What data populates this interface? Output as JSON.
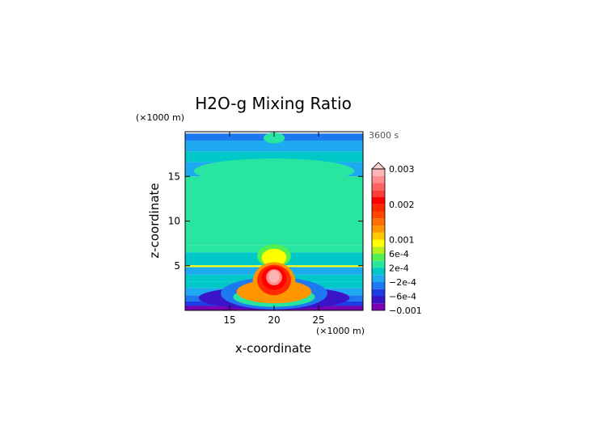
{
  "chart_data": {
    "type": "heatmap",
    "title": "H2O-g Mixing Ratio",
    "xlabel": "x-coordinate",
    "ylabel": "z-coordinate",
    "x_unit": "(×1000 m)",
    "y_unit": "(×1000 m)",
    "time_label": "3600 s",
    "xlim": [
      10,
      30
    ],
    "ylim": [
      0,
      20
    ],
    "x_ticks": [
      {
        "value": 15,
        "label": "15"
      },
      {
        "value": 20,
        "label": "20"
      },
      {
        "value": 25,
        "label": "25"
      }
    ],
    "y_ticks": [
      {
        "value": 5,
        "label": "5"
      },
      {
        "value": 10,
        "label": "10"
      },
      {
        "value": 15,
        "label": "15"
      }
    ],
    "colorbar": {
      "levels": [
        -0.001,
        -0.0008,
        -0.0006,
        -0.0004,
        -0.0002,
        0,
        0.0002,
        0.0004,
        0.0006,
        0.0008,
        0.001,
        0.0012,
        0.0014,
        0.0016,
        0.0018,
        0.002,
        0.0022,
        0.0024,
        0.0026,
        0.0028,
        0.003
      ],
      "colors": [
        "#7a00b4",
        "#3c14c8",
        "#1e3ce6",
        "#1e78f0",
        "#1eaaf0",
        "#00c8c8",
        "#28e6a0",
        "#50f050",
        "#b4f01e",
        "#ffff00",
        "#ffc800",
        "#ff9600",
        "#ff6e00",
        "#ff4600",
        "#ff2800",
        "#ff0000",
        "#ff3c3c",
        "#ff6464",
        "#ff8c8c",
        "#ffb4b4"
      ],
      "labels": [
        {
          "value": 0.003,
          "text": "0.003"
        },
        {
          "value": 0.002,
          "text": "0.002"
        },
        {
          "value": 0.001,
          "text": "0.001"
        },
        {
          "value": 0.0006,
          "text": "6e-4"
        },
        {
          "value": 0.0002,
          "text": "2e-4"
        },
        {
          "value": -0.0002,
          "text": "−2e-4"
        },
        {
          "value": -0.0006,
          "text": "−6e-4"
        },
        {
          "value": -0.001,
          "text": "−0.001"
        }
      ]
    },
    "bands": [
      {
        "z": [
          0,
          0.5
        ],
        "value": -0.001
      },
      {
        "z": [
          0.5,
          1.0
        ],
        "value": -0.0006
      },
      {
        "z": [
          1.0,
          1.7
        ],
        "value": -0.0004
      },
      {
        "z": [
          1.7,
          2.5
        ],
        "value": -0.0002
      },
      {
        "z": [
          2.5,
          3.2
        ],
        "value": 0
      },
      {
        "z": [
          3.2,
          4.0
        ],
        "value": 0
      },
      {
        "z": [
          4.0,
          4.85
        ],
        "value": -0.0002
      },
      {
        "z": [
          4.85,
          5.05
        ],
        "value": 0.0008
      },
      {
        "z": [
          5.05,
          6.5
        ],
        "value": 0
      },
      {
        "z": [
          6.5,
          7.3
        ],
        "value": 0.0002
      },
      {
        "z": [
          7.3,
          15.0
        ],
        "value": 0.0002
      },
      {
        "z": [
          15.0,
          16.6
        ],
        "value": -0.0002
      },
      {
        "z": [
          16.6,
          17.8
        ],
        "value": 0
      },
      {
        "z": [
          17.8,
          19.0
        ],
        "value": -0.0002
      },
      {
        "z": [
          19.0,
          19.8
        ],
        "value": -0.0004
      }
    ],
    "blobs": [
      {
        "x": 20,
        "z": 1.4,
        "rx": 8.5,
        "rz": 1.3,
        "value": -0.0008
      },
      {
        "x": 20,
        "z": 1.9,
        "rx": 6.0,
        "rz": 1.8,
        "value": -0.0004
      },
      {
        "x": 20,
        "z": 1.5,
        "rx": 4.6,
        "rz": 1.1,
        "value": 0.0002
      },
      {
        "x": 20,
        "z": 15.6,
        "rx": 9.0,
        "rz": 1.4,
        "value": 0.0002
      },
      {
        "x": 20,
        "z": 19.3,
        "rx": 1.2,
        "rz": 0.6,
        "value": 0.0002
      },
      {
        "x": 20,
        "z": 6.1,
        "rx": 1.9,
        "rz": 1.3,
        "value": 0.0004
      },
      {
        "x": 20,
        "z": 5.9,
        "rx": 1.4,
        "rz": 1.0,
        "value": 0.0008
      },
      {
        "x": 20,
        "z": 2.1,
        "rx": 4.2,
        "rz": 1.3,
        "value": 0.0012
      },
      {
        "x": 20,
        "z": 3.2,
        "rx": 2.4,
        "rz": 2.2,
        "value": 0.0012
      },
      {
        "x": 20,
        "z": 3.4,
        "rx": 1.9,
        "rz": 1.7,
        "value": 0.0018
      },
      {
        "x": 20,
        "z": 3.6,
        "rx": 1.4,
        "rz": 1.3,
        "value": 0.002
      },
      {
        "x": 20,
        "z": 3.7,
        "rx": 0.9,
        "rz": 0.9,
        "value": 0.0026
      },
      {
        "x": 20,
        "z": 3.8,
        "rx": 0.6,
        "rz": 0.7,
        "value": 0.0028
      }
    ]
  }
}
